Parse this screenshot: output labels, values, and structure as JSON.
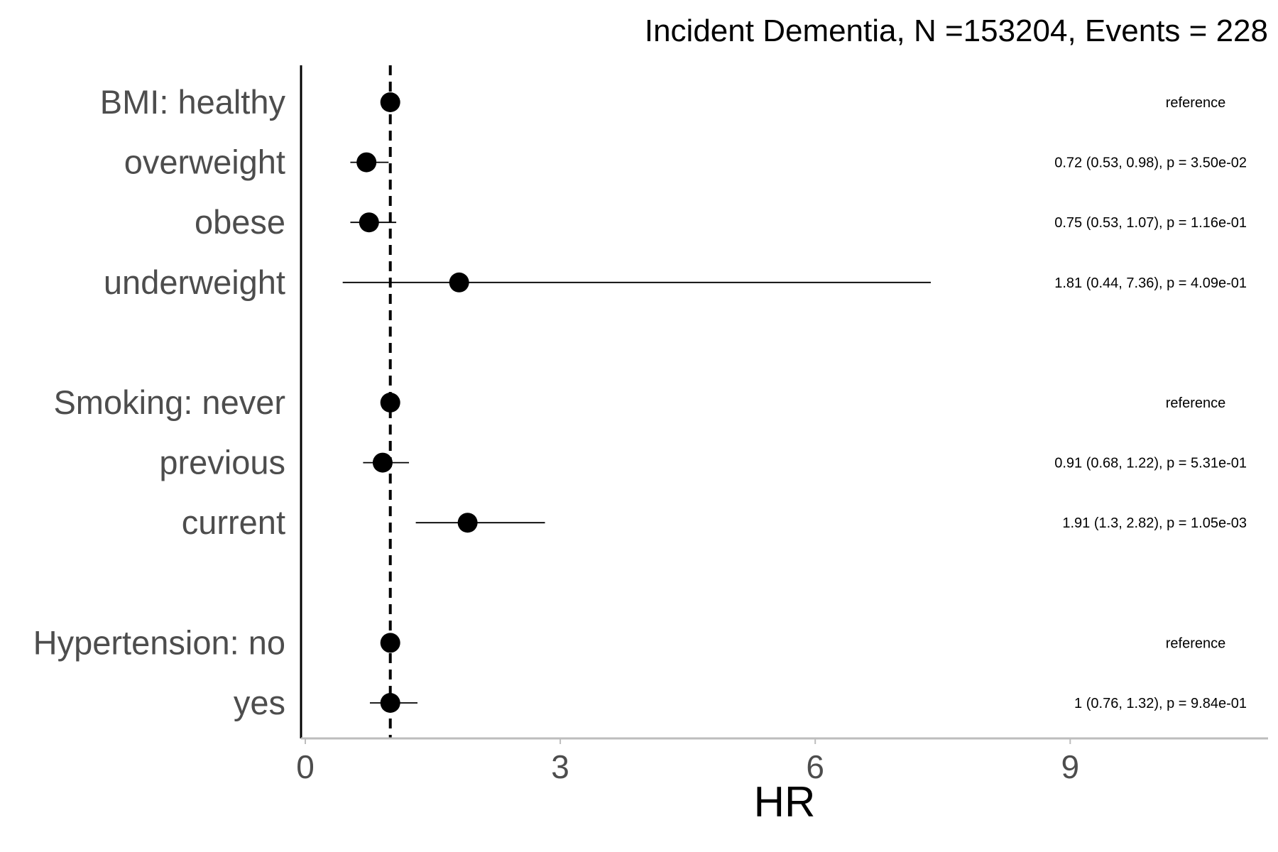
{
  "chart_data": {
    "type": "scatter",
    "subtype": "forest-plot",
    "title": "Incident Dementia, N =153204, Events = 228",
    "xlabel": "HR",
    "ylabel": "",
    "xlim": [
      0,
      11.3
    ],
    "x_ticks": [
      "0",
      "3",
      "6",
      "9"
    ],
    "reference_line": 1,
    "grid": false,
    "rows": [
      {
        "label": "BMI: healthy",
        "hr": 1,
        "lower": null,
        "upper": null,
        "annotation": "reference"
      },
      {
        "label": "overweight",
        "hr": 0.72,
        "lower": 0.53,
        "upper": 0.98,
        "annotation": "0.72 (0.53, 0.98), p = 3.50e-02"
      },
      {
        "label": "obese",
        "hr": 0.75,
        "lower": 0.53,
        "upper": 1.07,
        "annotation": "0.75 (0.53, 1.07), p = 1.16e-01"
      },
      {
        "label": "underweight",
        "hr": 1.81,
        "lower": 0.44,
        "upper": 7.36,
        "annotation": "1.81 (0.44, 7.36), p = 4.09e-01"
      },
      {
        "label": "Smoking: never",
        "hr": 1,
        "lower": null,
        "upper": null,
        "annotation": "reference"
      },
      {
        "label": "previous",
        "hr": 0.91,
        "lower": 0.68,
        "upper": 1.22,
        "annotation": "0.91 (0.68, 1.22), p = 5.31e-01"
      },
      {
        "label": "current",
        "hr": 1.91,
        "lower": 1.3,
        "upper": 2.82,
        "annotation": "1.91 (1.3, 2.82), p = 1.05e-03"
      },
      {
        "label": "Hypertension: no",
        "hr": 1,
        "lower": null,
        "upper": null,
        "annotation": "reference"
      },
      {
        "label": "yes",
        "hr": 1,
        "lower": 0.76,
        "upper": 1.32,
        "annotation": "1 (0.76, 1.32), p = 9.84e-01"
      }
    ]
  }
}
